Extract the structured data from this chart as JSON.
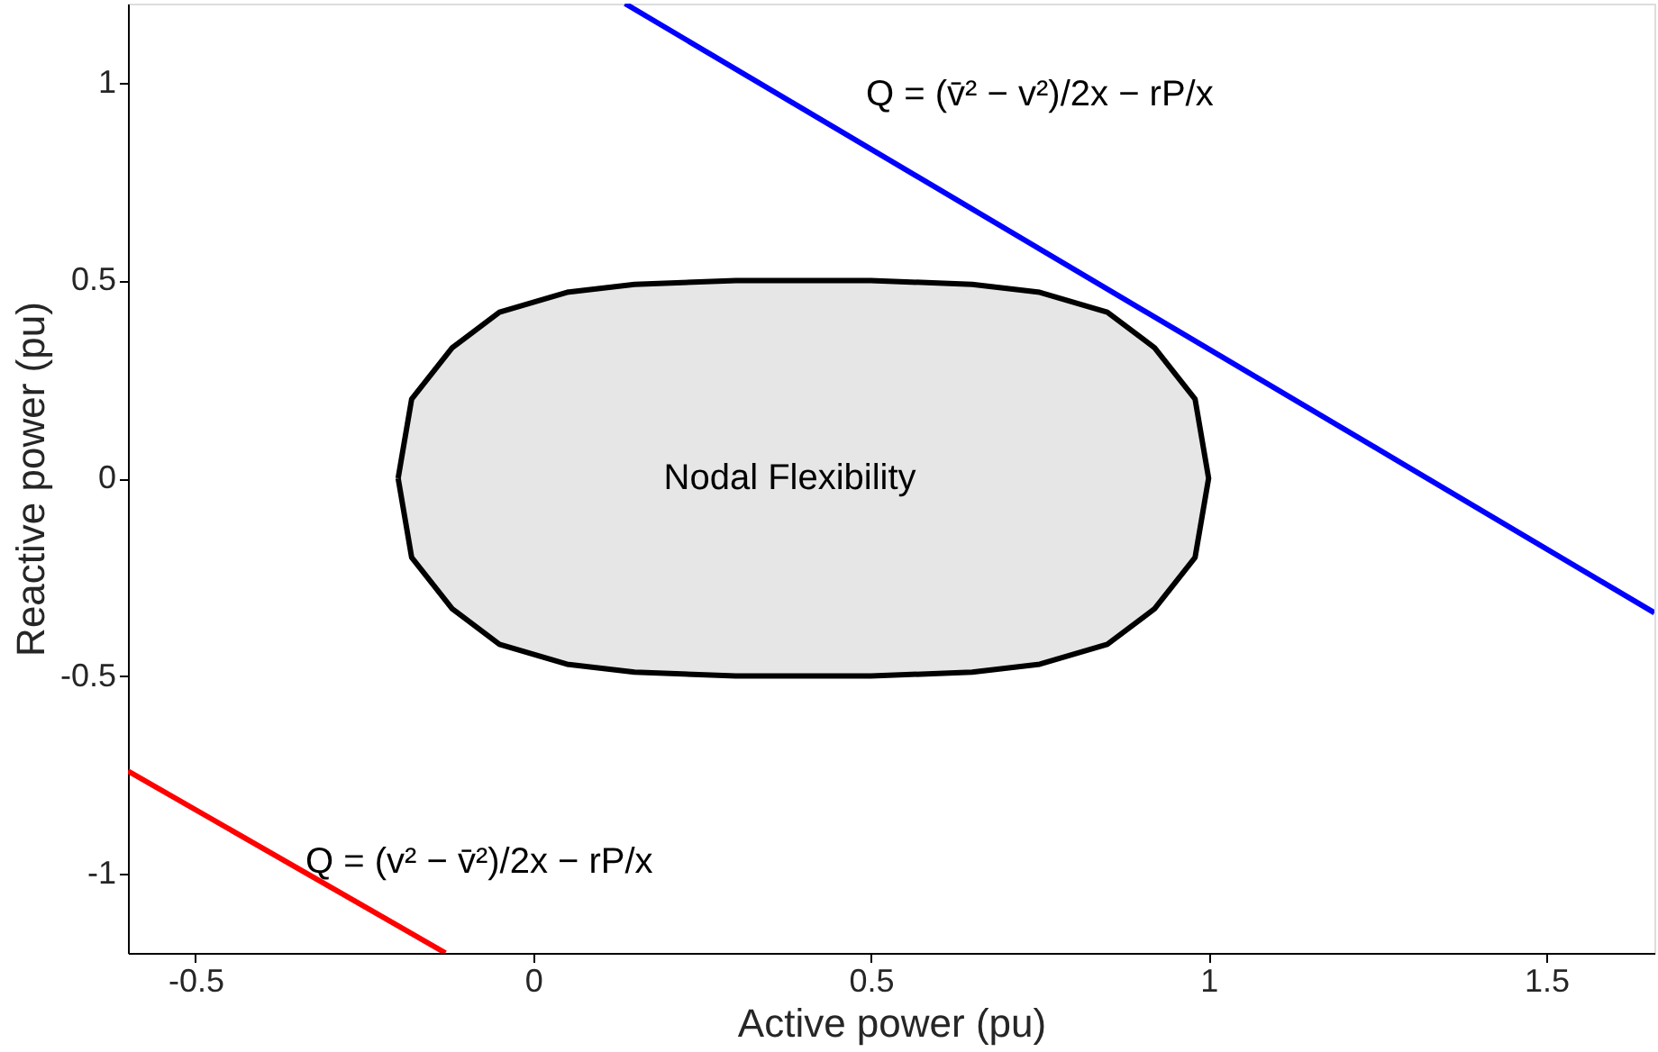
{
  "chart_data": {
    "type": "line",
    "xlabel": "Active power (pu)",
    "ylabel": "Reactive power (pu)",
    "xlim": [
      -0.6,
      1.66
    ],
    "ylim": [
      -1.2,
      1.2
    ],
    "xticks": [
      -0.5,
      0,
      0.5,
      1,
      1.5
    ],
    "yticks": [
      -1,
      -0.5,
      0,
      0.5,
      1
    ],
    "grid": false,
    "series": [
      {
        "color": "#0000ff",
        "x": [
          0.136,
          1.66
        ],
        "values": [
          1.2,
          -0.34
        ]
      },
      {
        "color": "#ff0000",
        "x": [
          -0.6,
          -0.13
        ],
        "values": [
          -0.74,
          -1.2
        ]
      },
      {
        "type": "area",
        "color": "#e6e6e6",
        "x": [
          -0.2,
          -0.18,
          -0.12,
          -0.05,
          0.05,
          0.15,
          0.3,
          0.5,
          0.65,
          0.75,
          0.85,
          0.92,
          0.98,
          1.0,
          0.98,
          0.92,
          0.85,
          0.75,
          0.65,
          0.5,
          0.3,
          0.15,
          0.05,
          -0.05,
          -0.12,
          -0.18,
          -0.2
        ],
        "values": [
          0,
          0.2,
          0.33,
          0.42,
          0.47,
          0.49,
          0.5,
          0.5,
          0.49,
          0.47,
          0.42,
          0.33,
          0.2,
          0,
          -0.2,
          -0.33,
          -0.42,
          -0.47,
          -0.49,
          -0.5,
          -0.5,
          -0.49,
          -0.47,
          -0.42,
          -0.33,
          -0.2,
          0
        ]
      }
    ],
    "annotations": [
      "Q = (v̄² − v²)/2x − rP/x",
      "Q = (v² − v̄²)/2x − rP/x",
      "Nodal Flexibility"
    ]
  }
}
